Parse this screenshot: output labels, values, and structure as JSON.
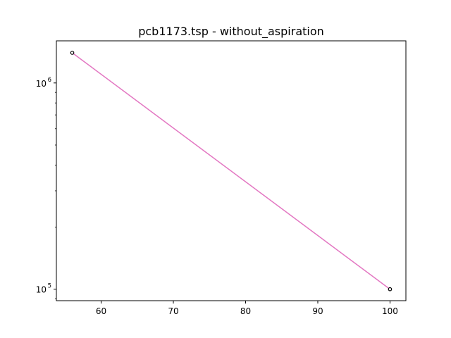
{
  "chart_data": {
    "type": "line",
    "title": "pcb1173.tsp - without_aspiration",
    "xlabel": "",
    "ylabel": "",
    "xlim": [
      53.8,
      102.2
    ],
    "ylim": [
      88000,
      1600000
    ],
    "y_scale": "log",
    "grid": false,
    "x_ticks": [
      60,
      70,
      80,
      90,
      100
    ],
    "x_tick_labels": [
      "60",
      "70",
      "80",
      "90",
      "100"
    ],
    "y_ticks": [
      100000,
      1000000
    ],
    "y_tick_labels": [
      {
        "base": "10",
        "exp": "5"
      },
      {
        "base": "10",
        "exp": "6"
      }
    ],
    "series": [
      {
        "x": [
          56,
          100
        ],
        "y": [
          1400000,
          100000
        ],
        "color": "#e377c2",
        "marker": "circle-open",
        "marker_edge_color": "#000000"
      }
    ]
  }
}
